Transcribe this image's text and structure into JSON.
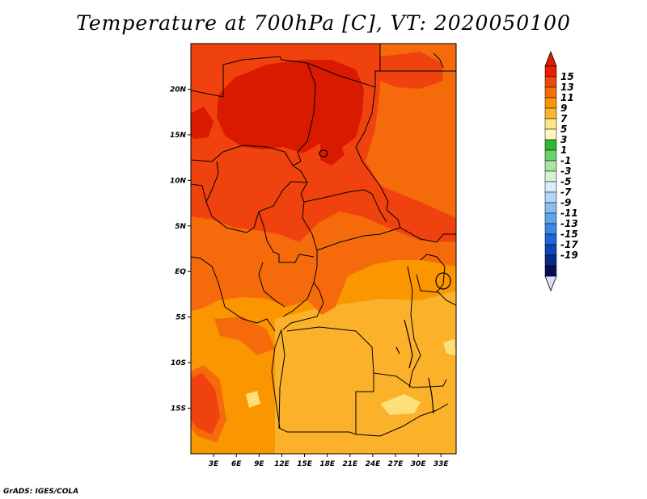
{
  "title": "Temperature at 700hPa [C], VT: 2020050100",
  "credit": "GrADS: IGES/COLA",
  "map": {
    "lon_range": [
      0,
      35
    ],
    "lat_range": [
      -20,
      25
    ],
    "x_ticks": [
      {
        "lon": 3,
        "label": "3E"
      },
      {
        "lon": 6,
        "label": "6E"
      },
      {
        "lon": 9,
        "label": "9E"
      },
      {
        "lon": 12,
        "label": "12E"
      },
      {
        "lon": 15,
        "label": "15E"
      },
      {
        "lon": 18,
        "label": "18E"
      },
      {
        "lon": 21,
        "label": "21E"
      },
      {
        "lon": 24,
        "label": "24E"
      },
      {
        "lon": 27,
        "label": "27E"
      },
      {
        "lon": 30,
        "label": "30E"
      },
      {
        "lon": 33,
        "label": "33E"
      }
    ],
    "y_ticks": [
      {
        "lat": 20,
        "label": "20N"
      },
      {
        "lat": 15,
        "label": "15N"
      },
      {
        "lat": 10,
        "label": "10N"
      },
      {
        "lat": 5,
        "label": "5N"
      },
      {
        "lat": 0,
        "label": "EQ"
      },
      {
        "lat": -5,
        "label": "5S"
      },
      {
        "lat": -10,
        "label": "10S"
      },
      {
        "lat": -15,
        "label": "15S"
      }
    ],
    "field_colors": {
      "t15": "#d91a00",
      "t13": "#f0420e",
      "t11": "#f56b0c",
      "t9": "#fa9600",
      "t7": "#fbb12a",
      "t5": "#fde07a"
    }
  },
  "colorbar": {
    "labels": [
      "15",
      "13",
      "11",
      "9",
      "7",
      "5",
      "3",
      "1",
      "-1",
      "-3",
      "-5",
      "-7",
      "-9",
      "-11",
      "-13",
      "-15",
      "-17",
      "-19"
    ],
    "colors": [
      "#e81e00",
      "#f04a08",
      "#f56f08",
      "#fa9500",
      "#fbb52e",
      "#fde68a",
      "#fff6bf",
      "#2eb834",
      "#6bd268",
      "#a8e5a0",
      "#d6f2d2",
      "#dcecfa",
      "#b3d6f6",
      "#86bef1",
      "#5ca5ec",
      "#3a8ae5",
      "#1e66d8",
      "#0f44b8",
      "#0a2a88",
      "#070c56"
    ],
    "top_arrow_color": "#d81e00",
    "bottom_arrow_color": "#dcdcf8"
  }
}
